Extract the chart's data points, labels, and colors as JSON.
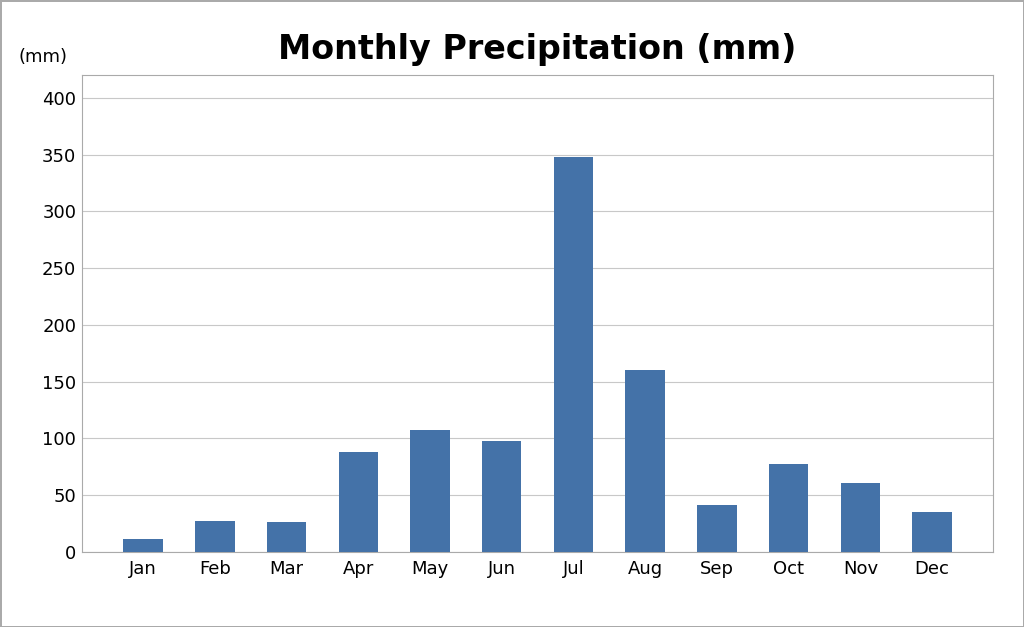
{
  "title": "Monthly Precipitation (mm)",
  "ylabel": "(mm)",
  "categories": [
    "Jan",
    "Feb",
    "Mar",
    "Apr",
    "May",
    "Jun",
    "Jul",
    "Aug",
    "Sep",
    "Oct",
    "Nov",
    "Dec"
  ],
  "values": [
    11,
    27,
    26,
    88,
    107,
    98,
    348,
    160,
    41,
    77,
    61,
    35
  ],
  "bar_color": "#4472a8",
  "ylim": [
    0,
    420
  ],
  "yticks": [
    0,
    50,
    100,
    150,
    200,
    250,
    300,
    350,
    400
  ],
  "background_color": "#ffffff",
  "grid_color": "#c8c8c8",
  "title_fontsize": 24,
  "tick_fontsize": 13,
  "ylabel_fontsize": 13,
  "bar_width": 0.55,
  "spine_color": "#aaaaaa",
  "outer_box_color": "#aaaaaa"
}
